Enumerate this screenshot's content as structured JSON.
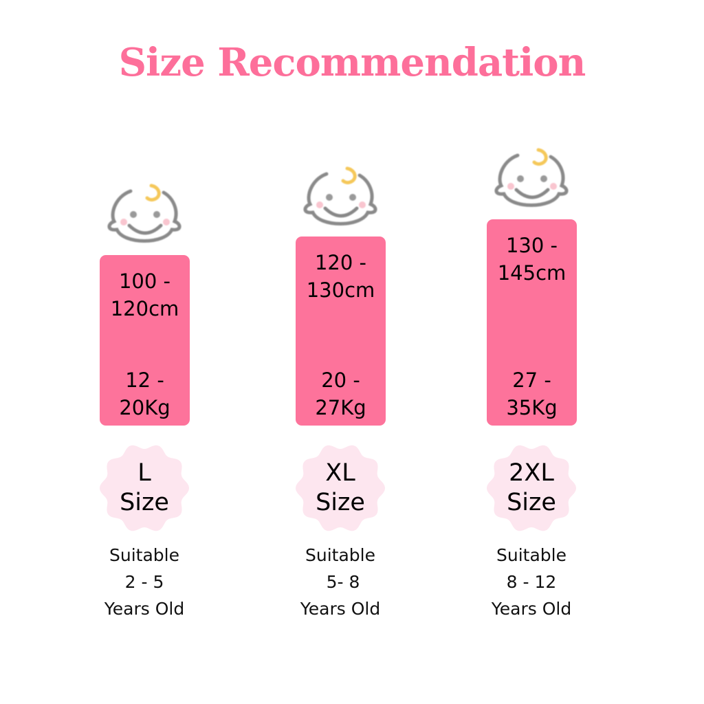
{
  "title": "Size Recommendation",
  "colors": {
    "accent": "#fd6f9a",
    "bar": "#fd739b",
    "badge": "#fde6ef",
    "face_outline": "#8a8a8a",
    "curl": "#f5c85a",
    "cheek": "#f9c5cf"
  },
  "columns": [
    {
      "icon": "baby-face-icon",
      "height": "100 -\n120cm",
      "weight": "12 -\n20Kg",
      "size_line1": "L",
      "size_line2": "Size",
      "suitable": "Suitable",
      "age": "2 - 5",
      "years": "Years Old"
    },
    {
      "icon": "baby-face-icon",
      "height": "120 -\n130cm",
      "weight": "20 -\n27Kg",
      "size_line1": "XL",
      "size_line2": "Size",
      "suitable": "Suitable",
      "age": " 5- 8",
      "years": "Years Old"
    },
    {
      "icon": "baby-face-icon",
      "height": "130 -\n145cm",
      "weight": "27 -\n35Kg",
      "size_line1": "2XL",
      "size_line2": "Size",
      "suitable": "Suitable",
      "age": "8 - 12",
      "years": "Years Old"
    }
  ]
}
